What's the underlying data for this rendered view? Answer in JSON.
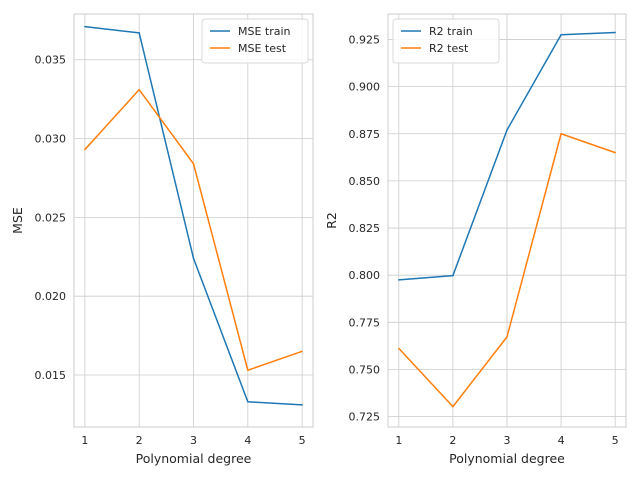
{
  "chart_data": [
    {
      "type": "line",
      "xlabel": "Polynomial degree",
      "ylabel": "MSE",
      "x": [
        1,
        2,
        3,
        4,
        5
      ],
      "xlim": [
        0.8,
        5.2
      ],
      "ylim": [
        0.0117,
        0.0379
      ],
      "yticks": [
        0.015,
        0.02,
        0.025,
        0.03,
        0.035
      ],
      "ytick_labels": [
        "0.015",
        "0.020",
        "0.025",
        "0.030",
        "0.035"
      ],
      "xtick_labels": [
        "1",
        "2",
        "3",
        "4",
        "5"
      ],
      "grid": true,
      "legend_position": "top-right",
      "series": [
        {
          "name": "MSE train",
          "color": "#1f77b4",
          "values": [
            0.0371,
            0.0367,
            0.0224,
            0.0133,
            0.0131
          ]
        },
        {
          "name": "MSE test",
          "color": "#ff7f0e",
          "values": [
            0.0293,
            0.0331,
            0.0284,
            0.0153,
            0.0165
          ]
        }
      ]
    },
    {
      "type": "line",
      "xlabel": "Polynomial degree",
      "ylabel": "R2",
      "x": [
        1,
        2,
        3,
        4,
        5
      ],
      "xlim": [
        0.8,
        5.2
      ],
      "ylim": [
        0.7195,
        0.9385
      ],
      "yticks": [
        0.725,
        0.75,
        0.775,
        0.8,
        0.825,
        0.85,
        0.875,
        0.9,
        0.925
      ],
      "ytick_labels": [
        "0.725",
        "0.750",
        "0.775",
        "0.800",
        "0.825",
        "0.850",
        "0.875",
        "0.900",
        "0.925"
      ],
      "xtick_labels": [
        "1",
        "2",
        "3",
        "4",
        "5"
      ],
      "grid": true,
      "legend_position": "top-left",
      "series": [
        {
          "name": "R2 train",
          "color": "#1f77b4",
          "values": [
            0.7975,
            0.7998,
            0.877,
            0.9275,
            0.9287
          ]
        },
        {
          "name": "R2 test",
          "color": "#ff7f0e",
          "values": [
            0.7612,
            0.7303,
            0.7673,
            0.875,
            0.865
          ]
        }
      ]
    }
  ]
}
